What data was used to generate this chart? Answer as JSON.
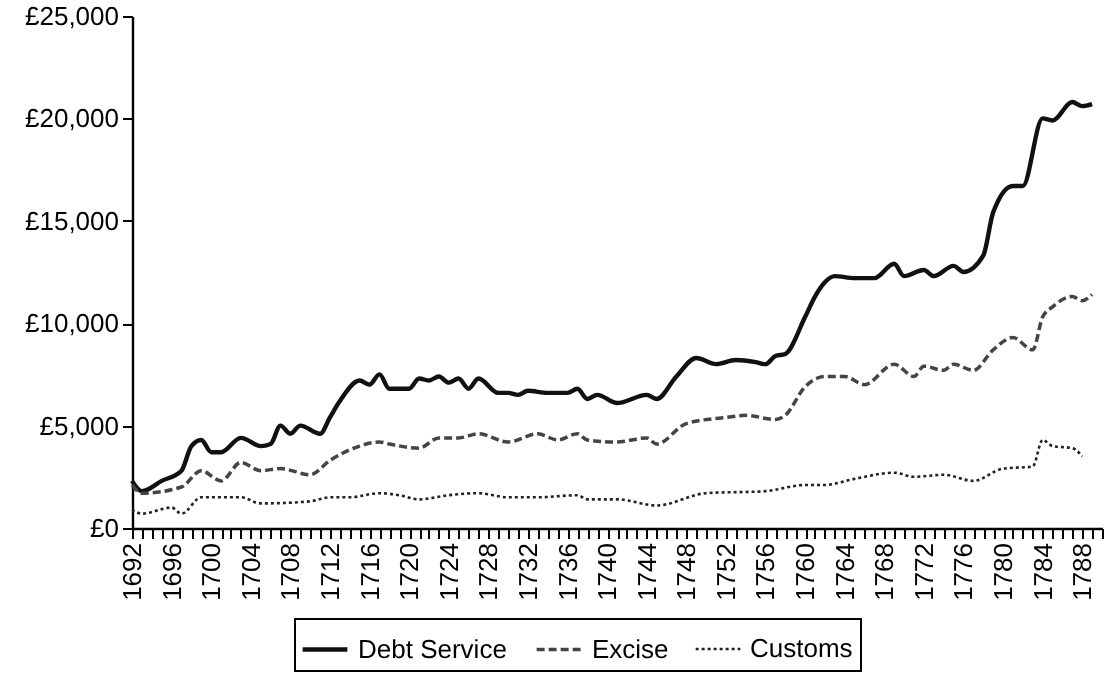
{
  "chart_data": {
    "type": "line",
    "legend": "bottom",
    "grid": false,
    "xlim": [
      1692,
      1790
    ],
    "xticks": [
      1692,
      {
        "value": 1693,
        "label": null
      },
      {
        "value": 1694,
        "label": null
      },
      {
        "value": 1695,
        "label": null
      },
      1696,
      {
        "value": 1697,
        "label": null
      },
      {
        "value": 1698,
        "label": null
      },
      {
        "value": 1699,
        "label": null
      },
      1700,
      {
        "value": 1701,
        "label": null
      },
      {
        "value": 1702,
        "label": null
      },
      {
        "value": 1703,
        "label": null
      },
      1704,
      {
        "value": 1705,
        "label": null
      },
      {
        "value": 1706,
        "label": null
      },
      {
        "value": 1707,
        "label": null
      },
      1708,
      {
        "value": 1709,
        "label": null
      },
      {
        "value": 1710,
        "label": null
      },
      {
        "value": 1711,
        "label": null
      },
      1712,
      {
        "value": 1713,
        "label": null
      },
      {
        "value": 1714,
        "label": null
      },
      {
        "value": 1715,
        "label": null
      },
      1716,
      {
        "value": 1717,
        "label": null
      },
      {
        "value": 1718,
        "label": null
      },
      {
        "value": 1719,
        "label": null
      },
      1720,
      {
        "value": 1721,
        "label": null
      },
      {
        "value": 1722,
        "label": null
      },
      {
        "value": 1723,
        "label": null
      },
      1724,
      {
        "value": 1725,
        "label": null
      },
      {
        "value": 1726,
        "label": null
      },
      {
        "value": 1727,
        "label": null
      },
      1728,
      {
        "value": 1729,
        "label": null
      },
      {
        "value": 1730,
        "label": null
      },
      {
        "value": 1731,
        "label": null
      },
      1732,
      {
        "value": 1733,
        "label": null
      },
      {
        "value": 1734,
        "label": null
      },
      {
        "value": 1735,
        "label": null
      },
      1736,
      {
        "value": 1737,
        "label": null
      },
      {
        "value": 1738,
        "label": null
      },
      {
        "value": 1739,
        "label": null
      },
      1740,
      {
        "value": 1741,
        "label": null
      },
      {
        "value": 1742,
        "label": null
      },
      {
        "value": 1743,
        "label": null
      },
      1744,
      {
        "value": 1745,
        "label": null
      },
      {
        "value": 1746,
        "label": null
      },
      {
        "value": 1747,
        "label": null
      },
      1748,
      {
        "value": 1749,
        "label": null
      },
      {
        "value": 1750,
        "label": null
      },
      {
        "value": 1751,
        "label": null
      },
      1752,
      {
        "value": 1753,
        "label": null
      },
      {
        "value": 1754,
        "label": null
      },
      {
        "value": 1755,
        "label": null
      },
      1756,
      {
        "value": 1757,
        "label": null
      },
      {
        "value": 1758,
        "label": null
      },
      {
        "value": 1759,
        "label": null
      },
      1760,
      {
        "value": 1761,
        "label": null
      },
      {
        "value": 1762,
        "label": null
      },
      {
        "value": 1763,
        "label": null
      },
      1764,
      {
        "value": 1765,
        "label": null
      },
      {
        "value": 1766,
        "label": null
      },
      {
        "value": 1767,
        "label": null
      },
      1768,
      {
        "value": 1769,
        "label": null
      },
      {
        "value": 1770,
        "label": null
      },
      {
        "value": 1771,
        "label": null
      },
      1772,
      {
        "value": 1773,
        "label": null
      },
      {
        "value": 1774,
        "label": null
      },
      {
        "value": 1775,
        "label": null
      },
      1776,
      {
        "value": 1777,
        "label": null
      },
      {
        "value": 1778,
        "label": null
      },
      {
        "value": 1779,
        "label": null
      },
      1780,
      {
        "value": 1781,
        "label": null
      },
      {
        "value": 1782,
        "label": null
      },
      {
        "value": 1783,
        "label": null
      },
      1784,
      {
        "value": 1785,
        "label": null
      },
      {
        "value": 1786,
        "label": null
      },
      {
        "value": 1787,
        "label": null
      },
      1788,
      {
        "value": 1789,
        "label": null
      },
      {
        "value": 1790,
        "label": null
      }
    ],
    "ylim": [
      0,
      25000
    ],
    "yticks": [
      {
        "value": 0,
        "label": "£0"
      },
      {
        "value": 5000,
        "label": "£5,000"
      },
      {
        "value": 10000,
        "label": "£10,000"
      },
      {
        "value": 15000,
        "label": "£15,000"
      },
      {
        "value": 20000,
        "label": "£20,000"
      },
      {
        "value": 25000,
        "label": "£25,000"
      }
    ],
    "series": [
      {
        "name": "Debt Service",
        "color": "#111111",
        "line_style": "solid",
        "x": [
          1692,
          1693,
          1695,
          1697,
          1698,
          1699,
          1700,
          1701,
          1703,
          1705,
          1706,
          1707,
          1708,
          1709,
          1711,
          1712,
          1713,
          1715,
          1716,
          1717,
          1718,
          1720,
          1721,
          1722,
          1723,
          1724,
          1725,
          1726,
          1727,
          1729,
          1730,
          1731,
          1732,
          1734,
          1736,
          1737,
          1738,
          1739,
          1741,
          1744,
          1745,
          1747,
          1749,
          1751,
          1753,
          1755,
          1756,
          1757,
          1758,
          1760,
          1761,
          1762,
          1763,
          1765,
          1767,
          1769,
          1770,
          1772,
          1773,
          1775,
          1776,
          1778,
          1779,
          1781,
          1782,
          1784,
          1785,
          1787,
          1788,
          1789
        ],
        "values": [
          2300,
          1800,
          2300,
          2800,
          4000,
          4300,
          3700,
          3700,
          4400,
          4000,
          4100,
          5000,
          4600,
          5000,
          4600,
          5400,
          6200,
          7200,
          7000,
          7500,
          6800,
          6800,
          7300,
          7200,
          7400,
          7100,
          7300,
          6800,
          7300,
          6600,
          6600,
          6500,
          6700,
          6600,
          6600,
          6800,
          6300,
          6500,
          6100,
          6500,
          6300,
          7400,
          8300,
          8000,
          8200,
          8100,
          8000,
          8400,
          8500,
          10300,
          11300,
          12000,
          12300,
          12200,
          12200,
          12900,
          12300,
          12600,
          12300,
          12800,
          12500,
          13300,
          15400,
          16700,
          16700,
          20000,
          19900,
          20800,
          20600,
          20700
        ]
      },
      {
        "name": "Excise",
        "color": "#444444",
        "line_style": "dashed",
        "x": [
          1692,
          1693,
          1697,
          1699,
          1701,
          1703,
          1705,
          1707,
          1710,
          1712,
          1715,
          1717,
          1718,
          1721,
          1723,
          1725,
          1727,
          1730,
          1733,
          1735,
          1737,
          1738,
          1741,
          1744,
          1745,
          1748,
          1752,
          1754,
          1757,
          1758,
          1760,
          1762,
          1764,
          1766,
          1769,
          1771,
          1772,
          1774,
          1775,
          1777,
          1779,
          1781,
          1783,
          1784,
          1785,
          1787,
          1788,
          1789
        ],
        "values": [
          2100,
          1700,
          2000,
          2800,
          2300,
          3200,
          2800,
          2900,
          2600,
          3300,
          4000,
          4200,
          4100,
          3900,
          4400,
          4400,
          4600,
          4200,
          4600,
          4300,
          4600,
          4300,
          4200,
          4400,
          4100,
          5100,
          5400,
          5500,
          5300,
          5500,
          6900,
          7400,
          7400,
          7000,
          8000,
          7400,
          7900,
          7700,
          8000,
          7700,
          8700,
          9300,
          8700,
          10300,
          10800,
          11300,
          11100,
          11400
        ]
      },
      {
        "name": "Customs",
        "color": "#222222",
        "line_style": "dotted",
        "x": [
          1692,
          1693,
          1696,
          1697,
          1699,
          1703,
          1705,
          1710,
          1712,
          1714,
          1717,
          1719,
          1721,
          1724,
          1727,
          1730,
          1733,
          1737,
          1738,
          1740,
          1741,
          1745,
          1750,
          1756,
          1760,
          1762,
          1765,
          1769,
          1771,
          1774,
          1777,
          1780,
          1783,
          1784,
          1785,
          1787,
          1788
        ],
        "values": [
          900,
          700,
          1000,
          700,
          1500,
          1500,
          1200,
          1300,
          1500,
          1500,
          1700,
          1600,
          1400,
          1600,
          1700,
          1500,
          1500,
          1600,
          1400,
          1400,
          1400,
          1100,
          1700,
          1800,
          2100,
          2100,
          2400,
          2700,
          2500,
          2600,
          2300,
          2900,
          3000,
          4300,
          4000,
          3900,
          3500
        ]
      }
    ]
  }
}
